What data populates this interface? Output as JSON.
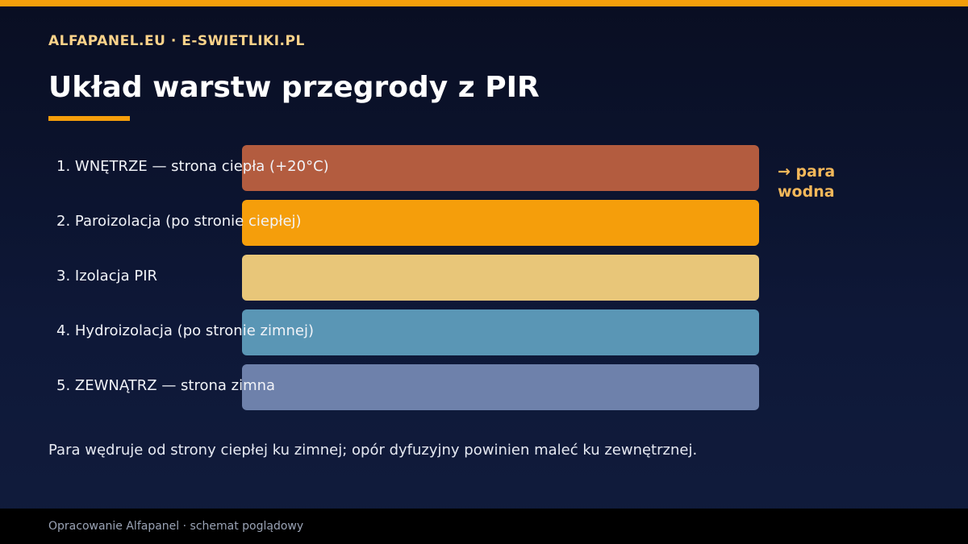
{
  "header": {
    "brand": "ALFAPANEL.EU · E-SWIETLIKI.PL",
    "title": "Układ warstw przegrody z PIR"
  },
  "colors": {
    "accent": "#f59e0b",
    "interior": "#b35c3f",
    "vapor_barrier": "#f59e0b",
    "pir": "#e8c679",
    "waterproofing": "#5a96b5",
    "exterior": "#6e81ab"
  },
  "layers": [
    {
      "label": "1. WNĘTRZE — strona ciepła (+20°C)",
      "color": "#b35c3f"
    },
    {
      "label": "2. Paroizolacja (po stronie ciepłej)",
      "color": "#f59e0b"
    },
    {
      "label": "3. Izolacja PIR",
      "color": "#e8c679"
    },
    {
      "label": "4. Hydroizolacja (po stronie zimnej)",
      "color": "#5a96b5"
    },
    {
      "label": "5. ZEWNĄTRZ — strona zimna",
      "color": "#6e81ab"
    }
  ],
  "vapor_note": "→ para wodna",
  "caption": "Para wędruje od strony ciepłej ku zimnej; opór dyfuzyjny powinien maleć ku zewnętrznej.",
  "footer": {
    "text": "Opracowanie Alfapanel · schemat poglądowy"
  }
}
